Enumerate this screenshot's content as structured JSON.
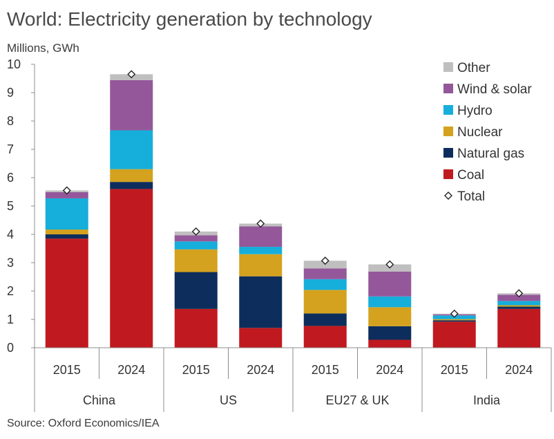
{
  "chart_data": {
    "type": "stacked-bar",
    "title": "World: Electricity generation by technology",
    "ylabel": "Millions, GWh",
    "ylim": [
      0,
      10
    ],
    "yticks": [
      "0",
      "1",
      "2",
      "3",
      "4",
      "5",
      "6",
      "7",
      "8",
      "9",
      "10"
    ],
    "groups": [
      "China",
      "US",
      "EU27 & UK",
      "India"
    ],
    "categories": [
      "2015",
      "2024",
      "2015",
      "2024",
      "2015",
      "2024",
      "2015",
      "2024"
    ],
    "series": [
      {
        "name": "Coal",
        "color": "#c0191f",
        "values": [
          3.85,
          5.6,
          1.37,
          0.7,
          0.77,
          0.28,
          0.92,
          1.37
        ]
      },
      {
        "name": "Natural gas",
        "color": "#0d2e5c",
        "values": [
          0.15,
          0.25,
          1.3,
          1.82,
          0.44,
          0.48,
          0.05,
          0.08
        ]
      },
      {
        "name": "Nuclear",
        "color": "#d4a21e",
        "values": [
          0.17,
          0.45,
          0.8,
          0.78,
          0.83,
          0.67,
          0.04,
          0.05
        ]
      },
      {
        "name": "Hydro",
        "color": "#16aedb",
        "values": [
          1.1,
          1.37,
          0.28,
          0.26,
          0.38,
          0.38,
          0.13,
          0.15
        ]
      },
      {
        "name": "Wind & solar",
        "color": "#94589a",
        "values": [
          0.22,
          1.77,
          0.22,
          0.72,
          0.38,
          0.88,
          0.04,
          0.22
        ]
      },
      {
        "name": "Other",
        "color": "#bfbfbf",
        "values": [
          0.06,
          0.21,
          0.13,
          0.1,
          0.27,
          0.25,
          0.02,
          0.05
        ]
      }
    ],
    "total": {
      "name": "Total",
      "values": [
        5.55,
        9.65,
        4.1,
        4.38,
        3.07,
        2.94,
        1.2,
        1.92
      ]
    },
    "legend_order": [
      "Other",
      "Wind & solar",
      "Hydro",
      "Nuclear",
      "Natural gas",
      "Coal",
      "Total"
    ],
    "legend_position": "top-right"
  },
  "source": "Source: Oxford Economics/IEA"
}
